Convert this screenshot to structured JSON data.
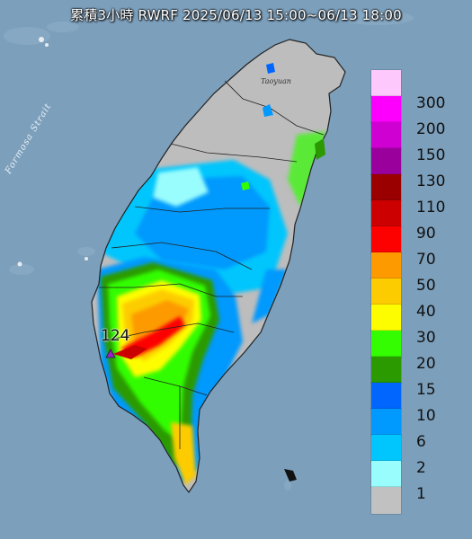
{
  "title": "累積3小時 RWRF 2025/06/13 15:00~06/13 18:00",
  "map": {
    "strait_label": "Formosa Strait",
    "city_label": "Taoyuan",
    "max_value_label": "124",
    "max_marker_color": "#9b1fcf"
  },
  "legend": {
    "items": [
      {
        "label": "300",
        "color": "#fdc9fd"
      },
      {
        "label": "200",
        "color": "#fd00fd"
      },
      {
        "label": "150",
        "color": "#cf00d2"
      },
      {
        "label": "130",
        "color": "#9a009b"
      },
      {
        "label": "110",
        "color": "#9a0000"
      },
      {
        "label": "90",
        "color": "#cc0000"
      },
      {
        "label": "70",
        "color": "#fd0000"
      },
      {
        "label": "50",
        "color": "#fd9a00"
      },
      {
        "label": "40",
        "color": "#fdcc00"
      },
      {
        "label": "30",
        "color": "#fdfd00"
      },
      {
        "label": "20",
        "color": "#33fd00"
      },
      {
        "label": "15",
        "color": "#2a9a00"
      },
      {
        "label": "10",
        "color": "#0066fd"
      },
      {
        "label": "6",
        "color": "#0099fd"
      },
      {
        "label": "2",
        "color": "#00c6fd"
      },
      {
        "label": "1",
        "color": "#9afdfd"
      },
      {
        "label": "",
        "color": "#c1c1c1"
      }
    ]
  },
  "colors": {
    "sea": "#7c9fbb",
    "land_no_rain": "#bdbdbd"
  }
}
